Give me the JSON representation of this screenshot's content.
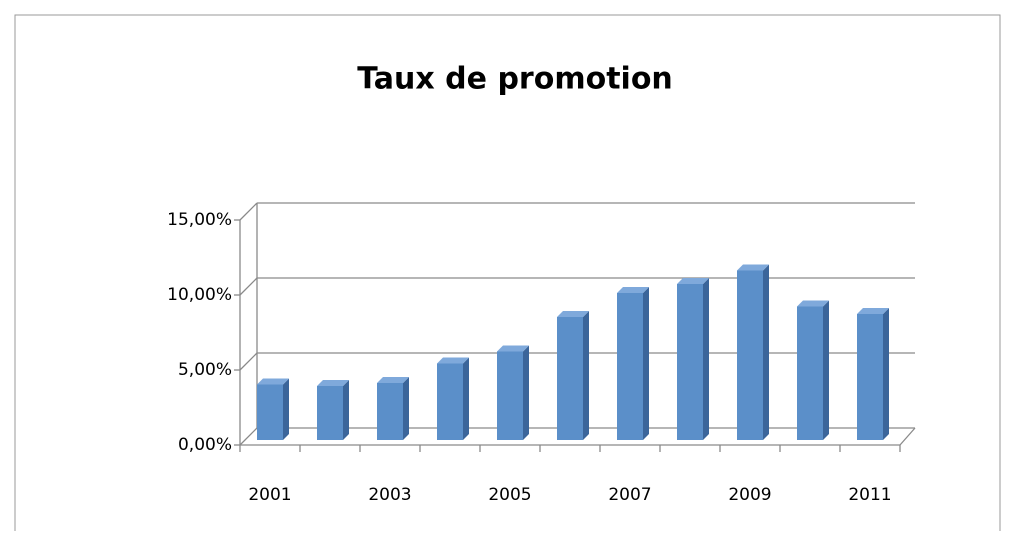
{
  "chart_data": {
    "type": "bar3d",
    "title": "Taux de promotion",
    "categories": [
      "2001",
      null,
      "2003",
      null,
      "2005",
      null,
      "2007",
      null,
      "2009",
      null,
      "2011"
    ],
    "values": [
      3.7,
      3.6,
      3.8,
      5.1,
      5.9,
      8.2,
      9.8,
      10.4,
      11.3,
      8.9,
      8.4
    ],
    "color": "#5b8fc9",
    "ylim": [
      0,
      15
    ],
    "yticks": [
      {
        "value": 0,
        "label": "0,00%"
      },
      {
        "value": 5,
        "label": "5,00%"
      },
      {
        "value": 10,
        "label": "10,00%"
      },
      {
        "value": 15,
        "label": "15,00%"
      }
    ],
    "grid": true
  }
}
